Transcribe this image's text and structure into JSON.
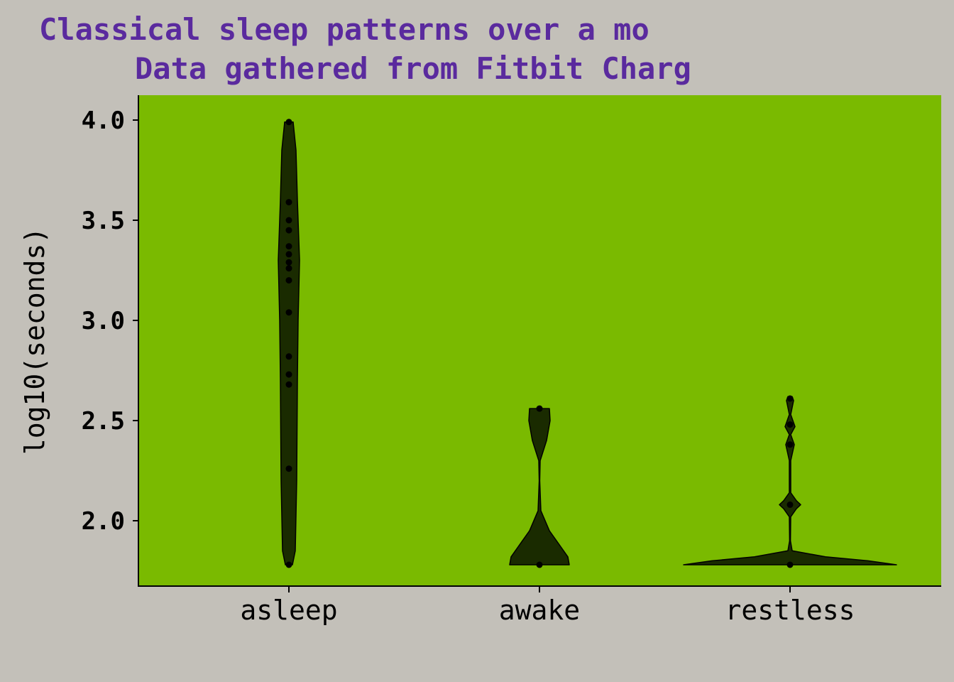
{
  "chart_data": {
    "type": "violin",
    "title_line1": "Classical sleep patterns over a mo",
    "title_line2": "Data gathered from Fitbit Charg",
    "xlabel": "",
    "ylabel": "log10(seconds)",
    "ylim": [
      1.7,
      4.1
    ],
    "yticks": [
      "2.0",
      "2.5",
      "3.0",
      "3.5",
      "4.0"
    ],
    "ytick_values": [
      2.0,
      2.5,
      3.0,
      3.5,
      4.0
    ],
    "categories": [
      "asleep",
      "awake",
      "restless"
    ],
    "colors": {
      "panel": "#7aba00",
      "violin": "#1a2b00",
      "point": "#000000",
      "title": "#5a2a9e",
      "background": "#c3c0b9"
    },
    "grid": false,
    "groups": [
      {
        "name": "asleep",
        "min": 1.78,
        "max": 3.99,
        "profile": [
          [
            1.78,
            0.25
          ],
          [
            1.85,
            0.45
          ],
          [
            2.2,
            0.55
          ],
          [
            2.7,
            0.6
          ],
          [
            3.0,
            0.65
          ],
          [
            3.3,
            0.75
          ],
          [
            3.6,
            0.6
          ],
          [
            3.85,
            0.5
          ],
          [
            3.99,
            0.3
          ]
        ],
        "points": [
          1.78,
          2.26,
          2.68,
          2.73,
          2.82,
          3.04,
          3.2,
          3.26,
          3.29,
          3.33,
          3.37,
          3.45,
          3.5,
          3.59,
          3.99
        ]
      },
      {
        "name": "awake",
        "min": 1.78,
        "max": 2.56,
        "profile": [
          [
            1.78,
            2.1
          ],
          [
            1.82,
            2.0
          ],
          [
            1.88,
            1.4
          ],
          [
            1.95,
            0.7
          ],
          [
            2.05,
            0.1
          ],
          [
            2.2,
            0.02
          ],
          [
            2.3,
            0.05
          ],
          [
            2.4,
            0.5
          ],
          [
            2.5,
            0.75
          ],
          [
            2.56,
            0.7
          ]
        ],
        "points": [
          1.78,
          2.56
        ]
      },
      {
        "name": "restless",
        "min": 1.78,
        "max": 2.62,
        "profile": [
          [
            1.78,
            7.5
          ],
          [
            1.8,
            5.5
          ],
          [
            1.82,
            2.5
          ],
          [
            1.85,
            0.15
          ],
          [
            1.9,
            0.03
          ],
          [
            2.02,
            0.05
          ],
          [
            2.06,
            0.45
          ],
          [
            2.08,
            0.75
          ],
          [
            2.1,
            0.45
          ],
          [
            2.14,
            0.05
          ],
          [
            2.3,
            0.05
          ],
          [
            2.38,
            0.3
          ],
          [
            2.43,
            0.05
          ],
          [
            2.47,
            0.35
          ],
          [
            2.53,
            0.05
          ],
          [
            2.6,
            0.25
          ],
          [
            2.62,
            0.15
          ]
        ],
        "points": [
          1.78,
          2.08,
          2.38,
          2.48,
          2.61
        ]
      }
    ]
  }
}
